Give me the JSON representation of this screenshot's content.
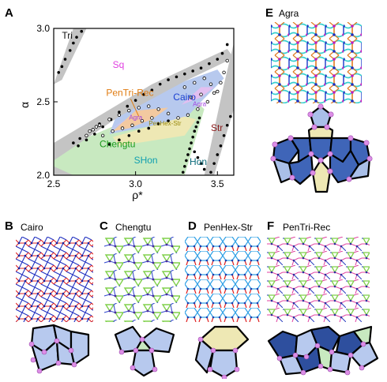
{
  "figure": {
    "panels": {
      "A": {
        "letter": "A"
      },
      "B": {
        "letter": "B",
        "title": "Cairo"
      },
      "C": {
        "letter": "C",
        "title": "Chengtu"
      },
      "D": {
        "letter": "D",
        "title": "PenHex-Str"
      },
      "E": {
        "letter": "E",
        "title": "Agra"
      },
      "F": {
        "letter": "F",
        "title": "PenTri-Rec"
      }
    }
  },
  "chart_data": {
    "type": "scatter",
    "title": "",
    "xlabel": "ρ*",
    "ylabel": "α",
    "xlim": [
      2.5,
      3.6
    ],
    "ylim": [
      2.0,
      3.0
    ],
    "x_ticks": [
      "2.5",
      "3.0",
      "3.5"
    ],
    "y_ticks": [
      "2.0",
      "2.5",
      "3.0"
    ],
    "region_labels": [
      {
        "text": "Tri",
        "x": 2.55,
        "y": 2.93,
        "color": "#111111"
      },
      {
        "text": "Sq",
        "x": 2.86,
        "y": 2.73,
        "color": "#e040e0"
      },
      {
        "text": "PenTri-Rec",
        "x": 2.82,
        "y": 2.54,
        "color": "#e07b10"
      },
      {
        "text": "Cairo",
        "x": 3.23,
        "y": 2.51,
        "color": "#1a3fd0"
      },
      {
        "text": "Agra",
        "x": 3.35,
        "y": 2.47,
        "color": "#a040e0"
      },
      {
        "text": "PenHex-Str",
        "x": 3.08,
        "y": 2.34,
        "color": "#9a8a10"
      },
      {
        "text": "Str",
        "x": 3.46,
        "y": 2.3,
        "color": "#8b1a1a"
      },
      {
        "text": "Chengtu",
        "x": 2.78,
        "y": 2.19,
        "color": "#1a9a1a"
      },
      {
        "text": "SHon",
        "x": 2.99,
        "y": 2.08,
        "color": "#10a0b0"
      },
      {
        "text": "Hon",
        "x": 3.33,
        "y": 2.07,
        "color": "#0a6a7a"
      },
      {
        "text": "Agra",
        "x": 2.96,
        "y": 2.38,
        "color": "#a040e0"
      }
    ],
    "series": [
      {
        "marker": "filled",
        "points": [
          [
            2.53,
            2.7
          ],
          [
            2.55,
            2.74
          ],
          [
            2.57,
            2.79
          ],
          [
            2.6,
            2.85
          ],
          [
            2.62,
            2.9
          ],
          [
            2.64,
            2.94
          ],
          [
            2.67,
            2.98
          ],
          [
            2.65,
            2.2
          ],
          [
            2.7,
            2.24
          ],
          [
            2.75,
            2.28
          ],
          [
            2.8,
            2.33
          ],
          [
            2.85,
            2.38
          ],
          [
            2.9,
            2.43
          ],
          [
            2.95,
            2.47
          ],
          [
            3.0,
            2.51
          ],
          [
            3.05,
            2.55
          ],
          [
            3.1,
            2.58
          ],
          [
            3.15,
            2.62
          ],
          [
            3.2,
            2.65
          ],
          [
            3.25,
            2.67
          ],
          [
            3.3,
            2.69
          ],
          [
            3.35,
            2.71
          ],
          [
            3.4,
            2.73
          ],
          [
            3.45,
            2.76
          ],
          [
            3.5,
            2.79
          ],
          [
            3.53,
            2.83
          ],
          [
            3.56,
            2.89
          ],
          [
            2.62,
            2.22
          ],
          [
            2.66,
            2.25
          ],
          [
            2.72,
            2.3
          ],
          [
            2.78,
            2.35
          ],
          [
            2.84,
            2.21
          ],
          [
            2.9,
            2.24
          ],
          [
            2.96,
            2.27
          ],
          [
            3.02,
            2.3
          ],
          [
            3.08,
            2.32
          ],
          [
            3.14,
            2.35
          ],
          [
            3.2,
            2.37
          ],
          [
            3.26,
            2.39
          ],
          [
            3.33,
            2.18
          ],
          [
            3.34,
            2.22
          ],
          [
            3.35,
            2.26
          ],
          [
            3.36,
            2.3
          ],
          [
            3.37,
            2.33
          ],
          [
            3.38,
            2.36
          ],
          [
            3.39,
            2.39
          ],
          [
            3.36,
            2.16
          ],
          [
            3.38,
            2.12
          ],
          [
            3.4,
            2.08
          ],
          [
            3.42,
            2.04
          ],
          [
            3.32,
            2.14
          ],
          [
            3.31,
            2.1
          ],
          [
            3.3,
            2.06
          ],
          [
            3.29,
            2.02
          ],
          [
            3.46,
            2.02
          ],
          [
            3.48,
            2.08
          ],
          [
            3.5,
            2.14
          ],
          [
            3.52,
            2.2
          ],
          [
            3.54,
            2.27
          ],
          [
            3.56,
            2.34
          ],
          [
            3.58,
            2.4
          ]
        ]
      },
      {
        "marker": "open",
        "points": [
          [
            2.72,
            2.3
          ],
          [
            2.78,
            2.34
          ],
          [
            2.84,
            2.38
          ],
          [
            2.9,
            2.41
          ],
          [
            2.96,
            2.44
          ],
          [
            3.02,
            2.46
          ],
          [
            3.08,
            2.47
          ],
          [
            3.14,
            2.45
          ],
          [
            3.2,
            2.42
          ],
          [
            3.26,
            2.39
          ],
          [
            3.32,
            2.41
          ],
          [
            3.38,
            2.45
          ],
          [
            3.44,
            2.5
          ],
          [
            3.48,
            2.56
          ],
          [
            3.52,
            2.63
          ],
          [
            3.54,
            2.7
          ],
          [
            3.56,
            2.78
          ],
          [
            2.8,
            2.27
          ],
          [
            2.86,
            2.3
          ],
          [
            2.92,
            2.32
          ],
          [
            2.98,
            2.34
          ],
          [
            3.04,
            2.37
          ],
          [
            3.1,
            2.39
          ],
          [
            3.3,
            2.6
          ],
          [
            3.36,
            2.63
          ],
          [
            3.42,
            2.66
          ],
          [
            3.46,
            2.62
          ],
          [
            3.5,
            2.57
          ],
          [
            3.4,
            2.55
          ],
          [
            3.34,
            2.53
          ],
          [
            2.7,
            2.27
          ],
          [
            2.74,
            2.31
          ],
          [
            2.76,
            2.33
          ]
        ]
      }
    ],
    "regions": [
      {
        "name": "Tri",
        "color": "#ffffff"
      },
      {
        "name": "Cairo",
        "color": "#b7c9ee"
      },
      {
        "name": "PenHex-Str",
        "color": "#eee8b4"
      },
      {
        "name": "Chengtu",
        "color": "#c8e9c0"
      },
      {
        "name": "PenTri-Rec",
        "color": "#f3c9a0"
      },
      {
        "name": "Agra",
        "color": "#e2bff0"
      }
    ]
  }
}
